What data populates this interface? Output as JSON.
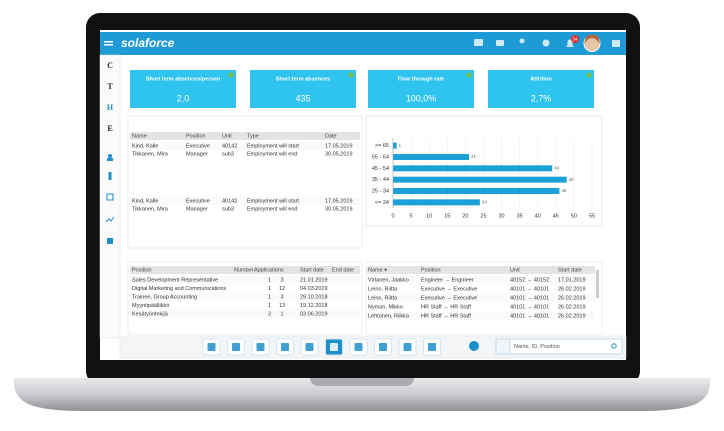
{
  "header": {
    "brand": "solaforce",
    "badge": "34"
  },
  "sidebar": [
    "C",
    "T",
    "H",
    "E"
  ],
  "kpis": [
    {
      "label": "Short term absences/person",
      "value": "2,0"
    },
    {
      "label": "Short term absences",
      "value": "435"
    },
    {
      "label": "Flow through rate",
      "value": "100,0%"
    },
    {
      "label": "Attrition",
      "value": "2,7%"
    }
  ],
  "table1": {
    "headers": [
      "Name",
      "Position",
      "Unit",
      "Type",
      "Date"
    ],
    "rows": [
      [
        "Kind, Kalle",
        "Executive",
        "40142",
        "Employment will start",
        "17.05.2019"
      ],
      [
        "Tikkanen, Mira",
        "Manager",
        "sub3",
        "Employment will end",
        "30.05.2019"
      ]
    ]
  },
  "table2": {
    "rows": [
      [
        "Kind, Kalle",
        "Executive",
        "40142",
        "Employment will start",
        "17.05.2019"
      ],
      [
        "Tikkanen, Mira",
        "Manager",
        "sub3",
        "Employment will end",
        "30.05.2019"
      ]
    ]
  },
  "table3": {
    "headers": [
      "Position",
      "Number",
      "Applications",
      "Start date",
      "End date"
    ],
    "rows": [
      [
        "Sales Development Representative",
        "1",
        "3",
        "21.01.2019"
      ],
      [
        "Digital Marketing and Communications",
        "1",
        "12",
        "04.03.2019"
      ],
      [
        "Trainee, Group Accounting",
        "1",
        "3",
        "29.10.2018"
      ],
      [
        "Myyntipäällikkö",
        "1",
        "13",
        "19.12.2018"
      ],
      [
        "Kesätyöntekijä",
        "3",
        "1",
        "03.06.2019"
      ]
    ]
  },
  "table4": {
    "headers": [
      "Name ▾",
      "Position",
      "Unit",
      "Start date"
    ],
    "rows": [
      [
        "Virtanen, Jaakko",
        "Engineer → Engineer",
        "40152 → 40152",
        "17.01.2019"
      ],
      [
        "Leino, Riitta",
        "Executive → Executive",
        "40101 → 40101",
        "26.02.2019"
      ],
      [
        "Leino, Riitta",
        "Executive → Executive",
        "40101 → 40101",
        "26.02.2019"
      ],
      [
        "Nyman, Mikko",
        "HR Staff → HR Staff",
        "40101 → 40101",
        "26.02.2019"
      ],
      [
        "Lehtonen, Riikka",
        "HR Staff → HR Staff",
        "40101 → 40101",
        "26.02.2019"
      ]
    ]
  },
  "search": {
    "placeholder": "Name, ID, Position"
  },
  "chart_data": {
    "type": "bar",
    "orientation": "horizontal",
    "categories": [
      ">= 65",
      "55 - 64",
      "45 - 54",
      "35 - 44",
      "25 - 34",
      "<= 24"
    ],
    "values": [
      1,
      21,
      44,
      48,
      46,
      24
    ],
    "color": "#1ba1d8",
    "xlim": [
      0,
      55
    ],
    "xticks": [
      0,
      5,
      10,
      15,
      20,
      25,
      30,
      35,
      40,
      45,
      50,
      55
    ]
  }
}
